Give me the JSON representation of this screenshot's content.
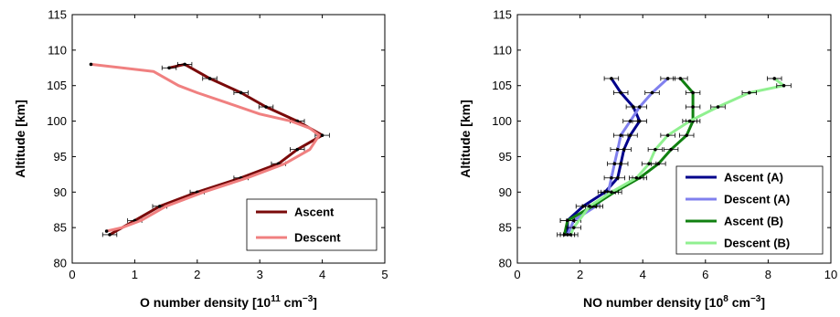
{
  "chart_data": [
    {
      "type": "line",
      "title": "",
      "xlabel": "O number density [10",
      "xlabel_exp": "11",
      "xlabel_unit": " cm",
      "xlabel_unit_exp": "−3",
      "xlabel_close": "]",
      "ylabel": "Altitude [km]",
      "xlim": [
        0,
        5
      ],
      "ylim": [
        80,
        115
      ],
      "xticks": [
        "0",
        "1",
        "2",
        "3",
        "4",
        "5"
      ],
      "yticks": [
        "80",
        "85",
        "90",
        "95",
        "100",
        "105",
        "110",
        "115"
      ],
      "legend_position": "bottom-right",
      "series": [
        {
          "name": "Ascent",
          "color": "#7a0a0a",
          "error_bars": true,
          "points": [
            [
              0.6,
              84
            ],
            [
              1.0,
              86
            ],
            [
              1.4,
              88
            ],
            [
              2.0,
              90
            ],
            [
              2.7,
              92
            ],
            [
              3.3,
              94
            ],
            [
              3.6,
              96
            ],
            [
              4.0,
              98
            ],
            [
              3.6,
              100
            ],
            [
              3.1,
              102
            ],
            [
              2.7,
              104
            ],
            [
              2.2,
              106
            ],
            [
              1.8,
              108
            ],
            [
              1.55,
              107.5
            ]
          ]
        },
        {
          "name": "Descent",
          "color": "#f08080",
          "error_bars": false,
          "points": [
            [
              0.55,
              84.5
            ],
            [
              0.8,
              85
            ],
            [
              1.1,
              86
            ],
            [
              1.5,
              88
            ],
            [
              2.1,
              90
            ],
            [
              2.8,
              92
            ],
            [
              3.4,
              94
            ],
            [
              3.8,
              96
            ],
            [
              3.95,
              98
            ],
            [
              3.8,
              99
            ],
            [
              3.5,
              100
            ],
            [
              3.0,
              101
            ],
            [
              2.5,
              102.5
            ],
            [
              2.0,
              104
            ],
            [
              1.7,
              105
            ],
            [
              1.5,
              106
            ],
            [
              1.3,
              107
            ],
            [
              0.3,
              108
            ]
          ]
        }
      ]
    },
    {
      "type": "line",
      "title": "",
      "xlabel": "NO number density [10",
      "xlabel_exp": "8",
      "xlabel_unit": " cm",
      "xlabel_unit_exp": "−3",
      "xlabel_close": "]",
      "ylabel": "Altitude [km]",
      "xlim": [
        0,
        10
      ],
      "ylim": [
        80,
        115
      ],
      "xticks": [
        "0",
        "2",
        "4",
        "6",
        "8",
        "10"
      ],
      "yticks": [
        "80",
        "85",
        "90",
        "95",
        "100",
        "105",
        "110",
        "115"
      ],
      "legend_position": "bottom-right",
      "series": [
        {
          "name": "Ascent (A)",
          "color": "#00008b",
          "error_bars": true,
          "points": [
            [
              1.6,
              84
            ],
            [
              1.6,
              86
            ],
            [
              2.1,
              88
            ],
            [
              2.8,
              90
            ],
            [
              3.2,
              92
            ],
            [
              3.3,
              94
            ],
            [
              3.4,
              96
            ],
            [
              3.6,
              98
            ],
            [
              3.9,
              100
            ],
            [
              3.7,
              102
            ],
            [
              3.3,
              104
            ],
            [
              3.0,
              106
            ]
          ]
        },
        {
          "name": "Descent (A)",
          "color": "#8080ee",
          "error_bars": true,
          "points": [
            [
              1.6,
              84
            ],
            [
              1.8,
              86
            ],
            [
              2.5,
              88
            ],
            [
              2.9,
              90
            ],
            [
              3.0,
              92
            ],
            [
              3.1,
              94
            ],
            [
              3.2,
              96
            ],
            [
              3.3,
              98
            ],
            [
              3.6,
              100
            ],
            [
              3.9,
              102
            ],
            [
              4.3,
              104
            ],
            [
              4.8,
              106
            ]
          ]
        },
        {
          "name": "Ascent (B)",
          "color": "#108010",
          "error_bars": true,
          "points": [
            [
              1.5,
              84
            ],
            [
              1.6,
              86
            ],
            [
              2.4,
              88
            ],
            [
              3.1,
              90
            ],
            [
              3.9,
              92
            ],
            [
              4.5,
              94
            ],
            [
              4.9,
              96
            ],
            [
              5.4,
              98
            ],
            [
              5.6,
              100
            ],
            [
              5.6,
              102
            ],
            [
              5.6,
              104
            ],
            [
              5.2,
              106
            ]
          ]
        },
        {
          "name": "Descent (B)",
          "color": "#90f090",
          "error_bars": true,
          "points": [
            [
              1.7,
              84
            ],
            [
              1.8,
              85
            ],
            [
              2.3,
              88
            ],
            [
              3.0,
              90
            ],
            [
              3.8,
              92
            ],
            [
              4.2,
              94
            ],
            [
              4.4,
              96
            ],
            [
              4.8,
              98
            ],
            [
              5.5,
              100
            ],
            [
              6.4,
              102
            ],
            [
              7.4,
              104
            ],
            [
              8.5,
              105
            ],
            [
              8.2,
              106
            ]
          ]
        }
      ]
    }
  ]
}
